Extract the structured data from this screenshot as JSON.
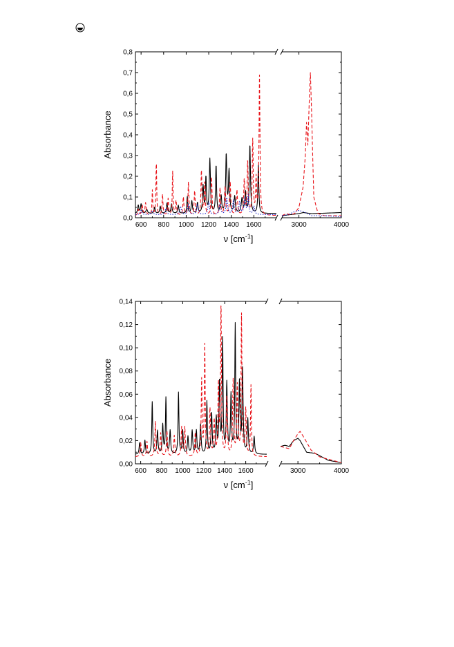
{
  "page_icon": "circled-half-disc-icon",
  "chart_data": [
    {
      "type": "line",
      "ylabel": "Absorbance",
      "xlabel_main": "ν [cm",
      "xlabel_sup": "-1",
      "xlabel_close": "]",
      "axis_break": true,
      "ylim": [
        0,
        0.8
      ],
      "yticks": [
        0,
        0.1,
        0.2,
        0.3,
        0.4,
        0.5,
        0.6,
        0.7,
        0.8
      ],
      "ytick_labels": [
        "0,0",
        "0,1",
        "0,2",
        "0,3",
        "0,4",
        "0,5",
        "0,6",
        "0,7",
        "0,8"
      ],
      "xlim_left": [
        550,
        1800
      ],
      "xlim_right": [
        2600,
        4000
      ],
      "xticks": [
        600,
        800,
        1000,
        1200,
        1400,
        1600,
        3000,
        4000
      ],
      "xtick_labels": [
        "600",
        "800",
        "1000",
        "1200",
        "1400",
        "1600",
        "3000",
        "4000"
      ],
      "series": [
        {
          "style": "solid",
          "color": "#000000",
          "peaks": [
            [
              575,
              0.04,
              6
            ],
            [
              600,
              0.045,
              6
            ],
            [
              650,
              0.02,
              8
            ],
            [
              720,
              0.03,
              6
            ],
            [
              770,
              0.035,
              6
            ],
            [
              830,
              0.05,
              6
            ],
            [
              870,
              0.045,
              6
            ],
            [
              930,
              0.04,
              6
            ],
            [
              1010,
              0.08,
              5
            ],
            [
              1050,
              0.06,
              6
            ],
            [
              1100,
              0.05,
              6
            ],
            [
              1150,
              0.13,
              6
            ],
            [
              1175,
              0.17,
              5
            ],
            [
              1210,
              0.26,
              6
            ],
            [
              1265,
              0.23,
              5
            ],
            [
              1310,
              0.08,
              6
            ],
            [
              1355,
              0.28,
              6
            ],
            [
              1380,
              0.2,
              6
            ],
            [
              1430,
              0.08,
              7
            ],
            [
              1495,
              0.07,
              8
            ],
            [
              1525,
              0.1,
              6
            ],
            [
              1565,
              0.33,
              6
            ],
            [
              1640,
              0.23,
              5
            ]
          ],
          "baseline": 0.02,
          "right": [
            [
              2600,
              0.01
            ],
            [
              2800,
              0.015
            ],
            [
              3000,
              0.02
            ],
            [
              3100,
              0.025
            ],
            [
              3300,
              0.02
            ],
            [
              3600,
              0.022
            ],
            [
              4000,
              0.025
            ]
          ]
        },
        {
          "style": "dashed",
          "color": "#e8141a",
          "peaks": [
            [
              575,
              0.03,
              6
            ],
            [
              610,
              0.05,
              6
            ],
            [
              640,
              0.06,
              6
            ],
            [
              700,
              0.12,
              4
            ],
            [
              735,
              0.26,
              4
            ],
            [
              790,
              0.1,
              5
            ],
            [
              840,
              0.08,
              5
            ],
            [
              880,
              0.21,
              4
            ],
            [
              910,
              0.07,
              6
            ],
            [
              975,
              0.09,
              5
            ],
            [
              1020,
              0.16,
              5
            ],
            [
              1075,
              0.12,
              5
            ],
            [
              1135,
              0.22,
              5
            ],
            [
              1165,
              0.16,
              5
            ],
            [
              1225,
              0.19,
              5
            ],
            [
              1300,
              0.13,
              6
            ],
            [
              1345,
              0.14,
              6
            ],
            [
              1390,
              0.16,
              6
            ],
            [
              1450,
              0.12,
              6
            ],
            [
              1515,
              0.17,
              6
            ],
            [
              1545,
              0.26,
              5
            ],
            [
              1590,
              0.36,
              5
            ],
            [
              1620,
              0.17,
              5
            ],
            [
              1650,
              0.67,
              5
            ]
          ],
          "baseline": 0.01,
          "right": [
            [
              2600,
              0.01
            ],
            [
              2700,
              0.02
            ],
            [
              2800,
              0.015
            ],
            [
              2900,
              0.02
            ],
            [
              3000,
              0.05
            ],
            [
              3100,
              0.15
            ],
            [
              3150,
              0.3
            ],
            [
              3180,
              0.46
            ],
            [
              3210,
              0.35
            ],
            [
              3250,
              0.6
            ],
            [
              3270,
              0.7
            ],
            [
              3300,
              0.5
            ],
            [
              3350,
              0.1
            ],
            [
              3450,
              0.02
            ],
            [
              3600,
              0.01
            ],
            [
              4000,
              0.01
            ]
          ]
        },
        {
          "style": "dotted",
          "color": "#1a22cc",
          "peaks": [
            [
              600,
              0.02,
              8
            ],
            [
              700,
              0.02,
              8
            ],
            [
              820,
              0.03,
              8
            ],
            [
              950,
              0.04,
              8
            ],
            [
              1020,
              0.05,
              8
            ],
            [
              1100,
              0.05,
              8
            ],
            [
              1200,
              0.06,
              8
            ],
            [
              1300,
              0.05,
              8
            ],
            [
              1360,
              0.08,
              8
            ],
            [
              1420,
              0.07,
              8
            ],
            [
              1475,
              0.06,
              8
            ],
            [
              1520,
              0.08,
              8
            ],
            [
              1550,
              0.09,
              6
            ],
            [
              1600,
              0.04,
              8
            ]
          ],
          "baseline": 0.015,
          "right": [
            [
              2600,
              0.01
            ],
            [
              2750,
              0.015
            ],
            [
              2900,
              0.03
            ],
            [
              3000,
              0.035
            ],
            [
              3100,
              0.03
            ],
            [
              3300,
              0.01
            ],
            [
              3600,
              0.01
            ],
            [
              4000,
              0.005
            ]
          ]
        }
      ]
    },
    {
      "type": "line",
      "ylabel": "Absorbance",
      "xlabel_main": "ν [cm",
      "xlabel_sup": "-1",
      "xlabel_close": "]",
      "axis_break": true,
      "ylim": [
        0,
        0.14
      ],
      "yticks": [
        0,
        0.02,
        0.04,
        0.06,
        0.08,
        0.1,
        0.12,
        0.14
      ],
      "ytick_labels": [
        "0,00",
        "0,02",
        "0,04",
        "0,06",
        "0,08",
        "0,10",
        "0,12",
        "0,14"
      ],
      "xlim_left": [
        550,
        1800
      ],
      "xlim_right": [
        2600,
        4000
      ],
      "xticks": [
        600,
        800,
        1000,
        1200,
        1400,
        1600,
        3000,
        4000
      ],
      "xtick_labels": [
        "600",
        "800",
        "1000",
        "1200",
        "1400",
        "1600",
        "3000",
        "4000"
      ],
      "series": [
        {
          "style": "solid",
          "color": "#000000",
          "peaks": [
            [
              590,
              0.01,
              6
            ],
            [
              640,
              0.012,
              6
            ],
            [
              710,
              0.045,
              5
            ],
            [
              760,
              0.02,
              6
            ],
            [
              810,
              0.025,
              6
            ],
            [
              840,
              0.048,
              5
            ],
            [
              880,
              0.02,
              6
            ],
            [
              960,
              0.053,
              5
            ],
            [
              1000,
              0.02,
              6
            ],
            [
              1050,
              0.015,
              6
            ],
            [
              1090,
              0.02,
              6
            ],
            [
              1130,
              0.02,
              6
            ],
            [
              1170,
              0.025,
              6
            ],
            [
              1230,
              0.045,
              5
            ],
            [
              1275,
              0.035,
              6
            ],
            [
              1320,
              0.03,
              6
            ],
            [
              1350,
              0.06,
              6
            ],
            [
              1380,
              0.097,
              5
            ],
            [
              1420,
              0.06,
              6
            ],
            [
              1460,
              0.05,
              6
            ],
            [
              1500,
              0.11,
              5
            ],
            [
              1540,
              0.06,
              6
            ],
            [
              1570,
              0.072,
              6
            ],
            [
              1620,
              0.03,
              6
            ],
            [
              1680,
              0.015,
              6
            ]
          ],
          "baseline": 0.008,
          "right": [
            [
              2600,
              0.015
            ],
            [
              2700,
              0.016
            ],
            [
              2800,
              0.015
            ],
            [
              2900,
              0.02
            ],
            [
              3000,
              0.022
            ],
            [
              3050,
              0.02
            ],
            [
              3200,
              0.01
            ],
            [
              3400,
              0.009
            ],
            [
              3700,
              0.003
            ],
            [
              4000,
              0.001
            ]
          ]
        },
        {
          "style": "dashed",
          "color": "#e8141a",
          "peaks": [
            [
              600,
              0.012,
              6
            ],
            [
              660,
              0.013,
              6
            ],
            [
              740,
              0.03,
              6
            ],
            [
              790,
              0.02,
              6
            ],
            [
              850,
              0.022,
              6
            ],
            [
              920,
              0.018,
              6
            ],
            [
              990,
              0.025,
              6
            ],
            [
              1020,
              0.025,
              6
            ],
            [
              1120,
              0.02,
              6
            ],
            [
              1180,
              0.065,
              5
            ],
            [
              1210,
              0.095,
              5
            ],
            [
              1260,
              0.04,
              6
            ],
            [
              1300,
              0.03,
              6
            ],
            [
              1340,
              0.06,
              6
            ],
            [
              1365,
              0.13,
              5
            ],
            [
              1420,
              0.05,
              6
            ],
            [
              1480,
              0.065,
              6
            ],
            [
              1520,
              0.06,
              6
            ],
            [
              1560,
              0.121,
              5
            ],
            [
              1600,
              0.04,
              6
            ],
            [
              1650,
              0.061,
              5
            ]
          ],
          "baseline": 0.006,
          "right": [
            [
              2600,
              0.015
            ],
            [
              2800,
              0.013
            ],
            [
              2900,
              0.02
            ],
            [
              3000,
              0.026
            ],
            [
              3050,
              0.028
            ],
            [
              3150,
              0.022
            ],
            [
              3300,
              0.012
            ],
            [
              3500,
              0.006
            ],
            [
              3800,
              0.003
            ],
            [
              4000,
              0.001
            ]
          ]
        }
      ]
    }
  ]
}
